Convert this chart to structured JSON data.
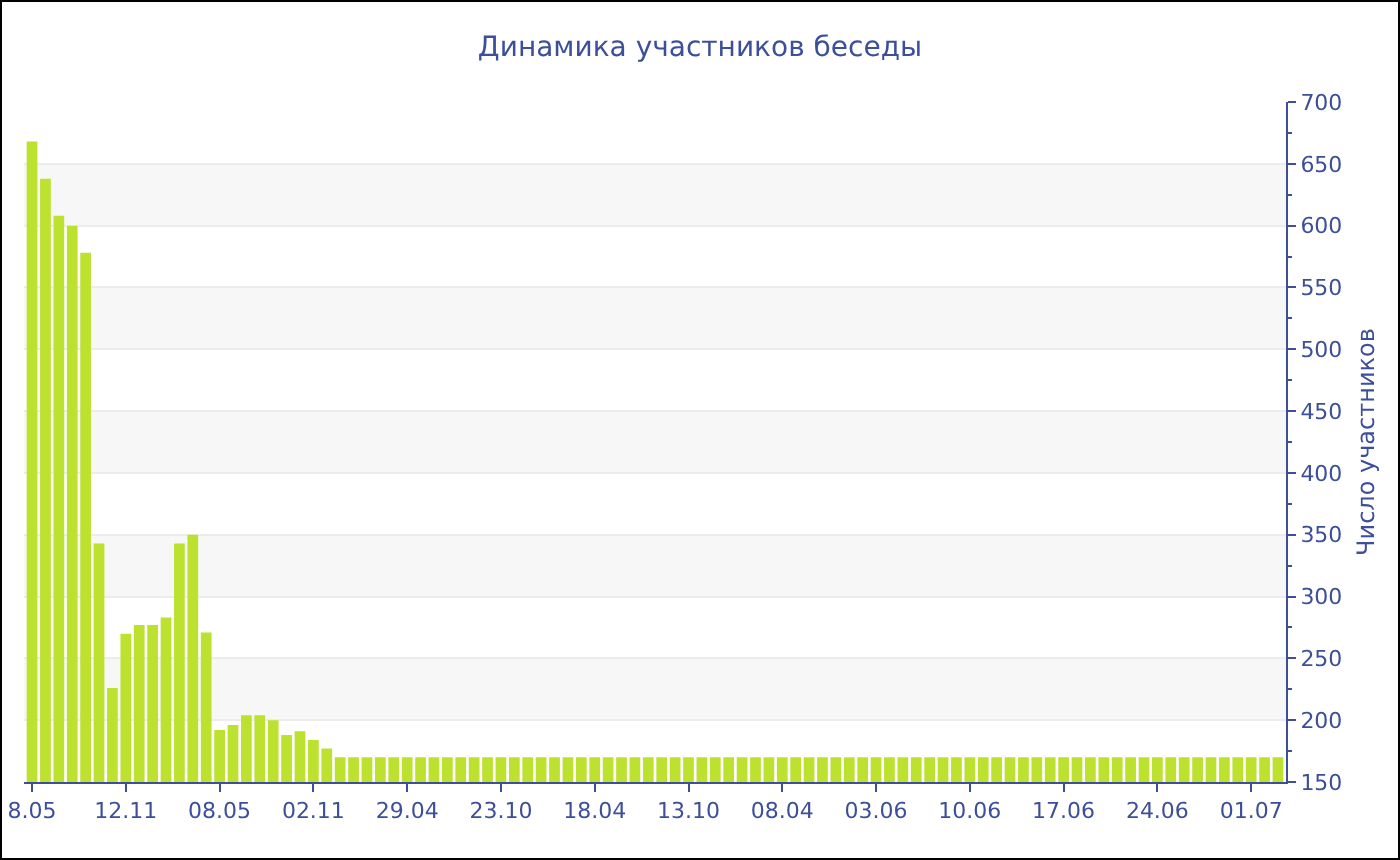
{
  "chart_data": {
    "type": "bar",
    "title": "Динамика участников беседы",
    "ylabel": "Число участников",
    "categories": [
      "8.05",
      null,
      null,
      null,
      null,
      null,
      null,
      "12.11",
      null,
      null,
      null,
      null,
      null,
      null,
      "08.05",
      null,
      null,
      null,
      null,
      null,
      null,
      "02.11",
      null,
      null,
      null,
      null,
      null,
      null,
      "29.04",
      null,
      null,
      null,
      null,
      null,
      null,
      "23.10",
      null,
      null,
      null,
      null,
      null,
      null,
      "18.04",
      null,
      null,
      null,
      null,
      null,
      null,
      "13.10",
      null,
      null,
      null,
      null,
      null,
      null,
      "08.04",
      null,
      null,
      null,
      null,
      null,
      null,
      "03.06",
      null,
      null,
      null,
      null,
      null,
      null,
      "10.06",
      null,
      null,
      null,
      null,
      null,
      null,
      "17.06",
      null,
      null,
      null,
      null,
      null,
      null,
      "24.06",
      null,
      null,
      null,
      null,
      null,
      null,
      "01.07",
      null,
      null
    ],
    "values": [
      668,
      638,
      608,
      600,
      578,
      343,
      226,
      270,
      277,
      277,
      283,
      343,
      350,
      271,
      192,
      196,
      204,
      204,
      200,
      188,
      191,
      184,
      177,
      170,
      170,
      170,
      170,
      170,
      170,
      170,
      170,
      170,
      170,
      170,
      170,
      170,
      170,
      170,
      170,
      170,
      170,
      170,
      170,
      170,
      170,
      170,
      170,
      170,
      170,
      170,
      170,
      170,
      170,
      170,
      170,
      170,
      170,
      170,
      170,
      170,
      170,
      170,
      170,
      170,
      170,
      170,
      170,
      170,
      170,
      170,
      170,
      170,
      170,
      170,
      170,
      170,
      170,
      170,
      170,
      170,
      170,
      170,
      170,
      170,
      170,
      170,
      170,
      170,
      170,
      170,
      170,
      170,
      170,
      170
    ],
    "color": "#bde12f",
    "ylim": [
      150,
      700
    ],
    "yticks": [
      150,
      200,
      250,
      300,
      350,
      400,
      450,
      500,
      550,
      600,
      650,
      700
    ],
    "grid": "y"
  }
}
